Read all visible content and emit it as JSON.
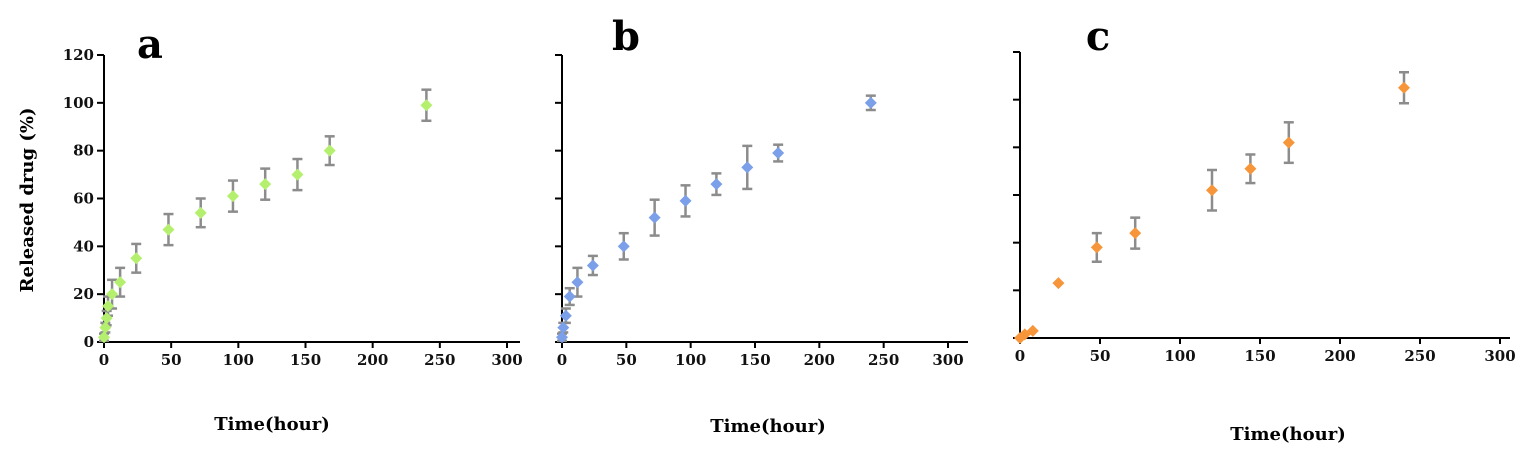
{
  "chart_data": [
    {
      "type": "scatter",
      "panel_label": "a",
      "xlabel": "Time(hour)",
      "ylabel": "Released drug (%)",
      "xlim": [
        0,
        300
      ],
      "ylim": [
        0,
        120
      ],
      "xticks": [
        "0",
        "50",
        "100",
        "150",
        "200",
        "250",
        "300"
      ],
      "yticks": [
        "0",
        "20",
        "40",
        "60",
        "80",
        "100",
        "120"
      ],
      "show_y_tick_labels": true,
      "marker_color": "#b4f06e",
      "error_bar_color": "#8c8c8c",
      "points": [
        {
          "x": 0,
          "y": 2,
          "err": 1.5
        },
        {
          "x": 1,
          "y": 6,
          "err": 2
        },
        {
          "x": 2,
          "y": 10,
          "err": 3
        },
        {
          "x": 3,
          "y": 15,
          "err": 4
        },
        {
          "x": 6,
          "y": 20,
          "err": 6
        },
        {
          "x": 12,
          "y": 25,
          "err": 6
        },
        {
          "x": 24,
          "y": 35,
          "err": 6
        },
        {
          "x": 48,
          "y": 47,
          "err": 6.5
        },
        {
          "x": 72,
          "y": 54,
          "err": 6
        },
        {
          "x": 96,
          "y": 61,
          "err": 6.5
        },
        {
          "x": 120,
          "y": 66,
          "err": 6.5
        },
        {
          "x": 144,
          "y": 70,
          "err": 6.5
        },
        {
          "x": 168,
          "y": 80,
          "err": 6
        },
        {
          "x": 240,
          "y": 99,
          "err": 6.5
        }
      ]
    },
    {
      "type": "scatter",
      "panel_label": "b",
      "xlabel": "Time(hour)",
      "ylabel": "",
      "xlim": [
        0,
        300
      ],
      "ylim": [
        0,
        120
      ],
      "xticks": [
        "0",
        "50",
        "100",
        "150",
        "200",
        "250",
        "300"
      ],
      "yticks": [
        "0",
        "20",
        "40",
        "60",
        "80",
        "100",
        "120"
      ],
      "show_y_tick_labels": false,
      "marker_color": "#7b9fe8",
      "error_bar_color": "#8c8c8c",
      "points": [
        {
          "x": 0,
          "y": 2,
          "err": 1.5
        },
        {
          "x": 1,
          "y": 6,
          "err": 2
        },
        {
          "x": 3,
          "y": 11,
          "err": 3
        },
        {
          "x": 6,
          "y": 19,
          "err": 3.5
        },
        {
          "x": 12,
          "y": 25,
          "err": 6
        },
        {
          "x": 24,
          "y": 32,
          "err": 4
        },
        {
          "x": 48,
          "y": 40,
          "err": 5.5
        },
        {
          "x": 72,
          "y": 52,
          "err": 7.5
        },
        {
          "x": 96,
          "y": 59,
          "err": 6.5
        },
        {
          "x": 120,
          "y": 66,
          "err": 4.5
        },
        {
          "x": 144,
          "y": 73,
          "err": 9
        },
        {
          "x": 168,
          "y": 79,
          "err": 3.5
        },
        {
          "x": 240,
          "y": 100,
          "err": 3
        }
      ]
    },
    {
      "type": "scatter",
      "panel_label": "c",
      "xlabel": "Time(hour)",
      "ylabel": "",
      "xlim": [
        0,
        300
      ],
      "ylim": [
        0,
        120
      ],
      "xticks": [
        "0",
        "50",
        "100",
        "150",
        "200",
        "250",
        "300"
      ],
      "yticks": [
        "0",
        "20",
        "40",
        "60",
        "80",
        "100",
        "120"
      ],
      "show_y_tick_labels": false,
      "marker_color": "#f7953a",
      "error_bar_color": "#8c8c8c",
      "points": [
        {
          "x": 0,
          "y": 0,
          "err": 0
        },
        {
          "x": 3,
          "y": 1.5,
          "err": 0
        },
        {
          "x": 8,
          "y": 3,
          "err": 0
        },
        {
          "x": 24,
          "y": 23,
          "err": 0
        },
        {
          "x": 48,
          "y": 38,
          "err": 6
        },
        {
          "x": 72,
          "y": 44,
          "err": 6.5
        },
        {
          "x": 120,
          "y": 62,
          "err": 8.5
        },
        {
          "x": 144,
          "y": 71,
          "err": 6
        },
        {
          "x": 168,
          "y": 82,
          "err": 8.5
        },
        {
          "x": 240,
          "y": 105,
          "err": 6.5
        }
      ]
    }
  ]
}
